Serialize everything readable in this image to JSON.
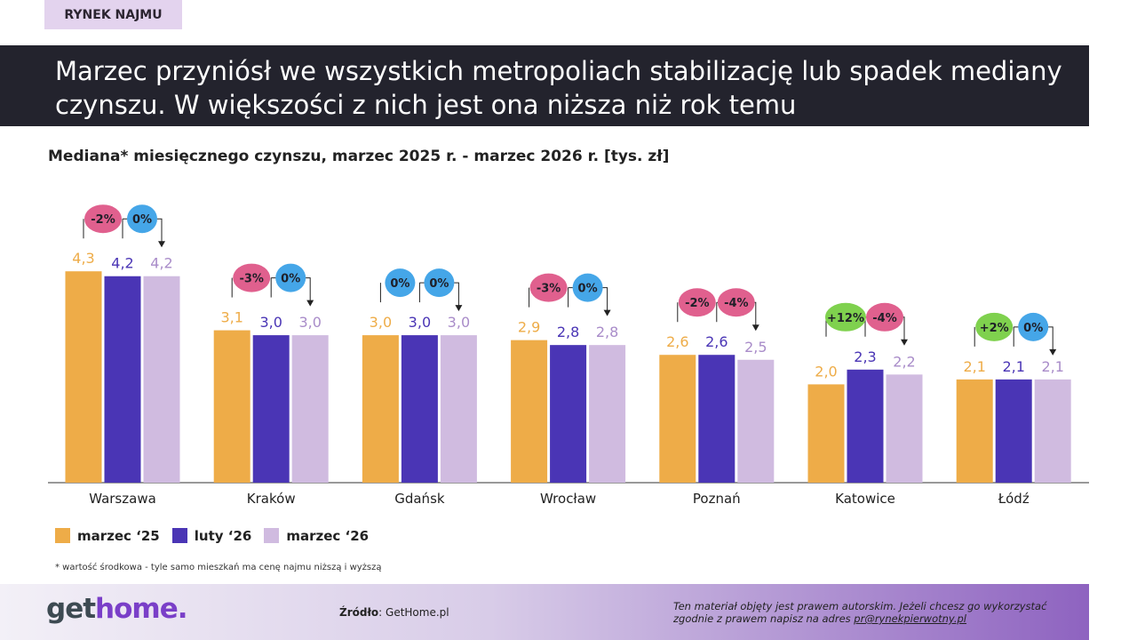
{
  "tag": "RYNEK NAJMU",
  "headline": "Marzec przyniósł we wszystkich metropoliach stabilizację lub spadek mediany czynszu. W większości z nich jest ona niższa niż rok temu",
  "chart_data": {
    "type": "bar",
    "title": "Mediana* miesięcznego czynszu, marzec 2025 r. - marzec 2026 r. [tys. zł]",
    "categories": [
      "Warszawa",
      "Kraków",
      "Gdańsk",
      "Wrocław",
      "Poznań",
      "Katowice",
      "Łódź"
    ],
    "series": [
      {
        "name": "marzec '25",
        "color": "#eeac48",
        "values": [
          4.3,
          3.1,
          3.0,
          2.9,
          2.6,
          2.0,
          2.1
        ],
        "labels": [
          "4,3",
          "3,1",
          "3,0",
          "2,9",
          "2,6",
          "2,0",
          "2,1"
        ]
      },
      {
        "name": "luty '26",
        "color": "#4a35b5",
        "values": [
          4.2,
          3.0,
          3.0,
          2.8,
          2.6,
          2.3,
          2.1
        ],
        "labels": [
          "4,2",
          "3,0",
          "3,0",
          "2,8",
          "2,6",
          "2,3",
          "2,1"
        ]
      },
      {
        "name": "marzec '26",
        "color": "#d0bbe0",
        "values": [
          4.2,
          3.0,
          3.0,
          2.8,
          2.5,
          2.2,
          2.1
        ],
        "labels": [
          "4,2",
          "3,0",
          "3,0",
          "2,8",
          "2,5",
          "2,2",
          "2,1"
        ]
      }
    ],
    "changes_yoy": [
      "-2%",
      "-3%",
      "0%",
      "-3%",
      "-2%",
      "+12%",
      "+2%"
    ],
    "changes_mom": [
      "0%",
      "0%",
      "0%",
      "0%",
      "-4%",
      "-4%",
      "0%"
    ],
    "badge_colors": {
      "negative": "#e0608e",
      "zero": "#45a6e8",
      "positive": "#7fd14e"
    },
    "ylim": [
      0,
      4.3
    ],
    "grid": false,
    "legend_position": "bottom-left"
  },
  "legend": [
    "marzec ‘25",
    "luty ‘26",
    "marzec ‘26"
  ],
  "note": "* wartość środkowa  - tyle samo mieszkań ma cenę najmu niższą i wyższą",
  "footer": {
    "logo_a": "get",
    "logo_b": "home.",
    "source_label": "Źródło",
    "source_value": ": GetHome.pl",
    "copyright": "Ten materiał objęty jest prawem autorskim. Jeżeli chcesz go wykorzystać zgodnie z prawem napisz na adres ",
    "email": "pr@rynekpierwotny.pl"
  }
}
